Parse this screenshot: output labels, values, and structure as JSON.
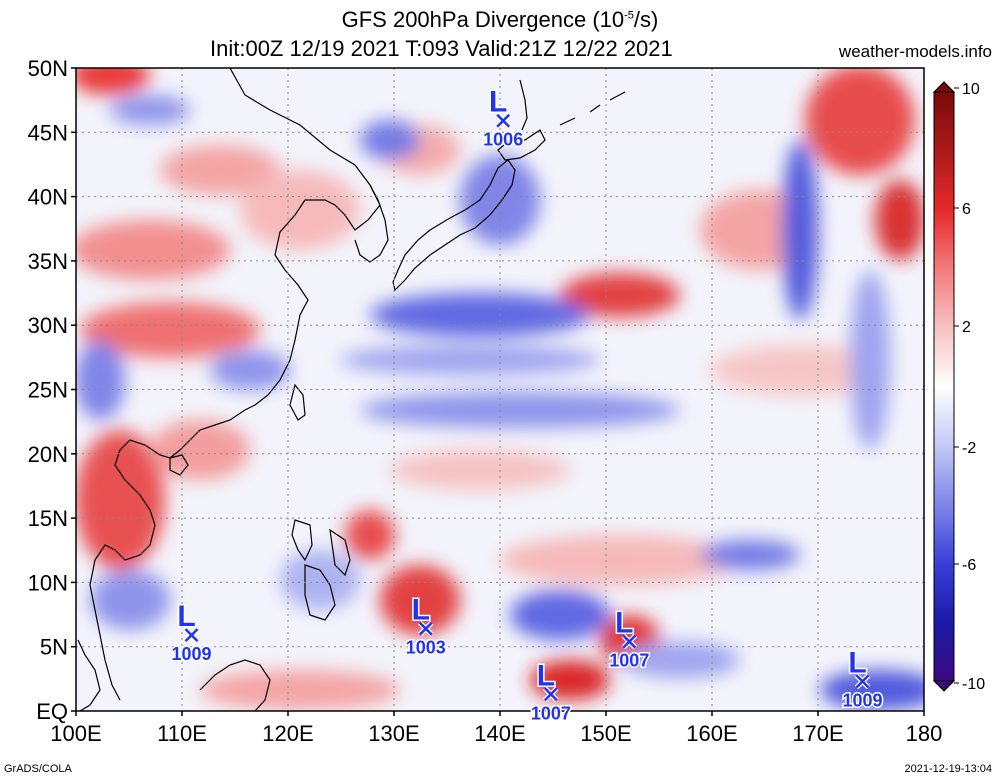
{
  "header": {
    "title_prefix": "GFS 200hPa Divergence (10",
    "title_exp": "-5",
    "title_suffix": "/s)",
    "subtitle": "Init:00Z 12/19 2021 T:093 Valid:21Z 12/22 2021",
    "site": "weather-models.info"
  },
  "footer": {
    "left": "GrADS/COLA",
    "right": "2021-12-19-13:04"
  },
  "map": {
    "lat_labels": [
      "50N",
      "45N",
      "40N",
      "35N",
      "30N",
      "25N",
      "20N",
      "15N",
      "10N",
      "5N",
      "EQ"
    ],
    "lon_labels": [
      "100E",
      "110E",
      "120E",
      "130E",
      "140E",
      "150E",
      "160E",
      "170E",
      "180"
    ],
    "lows": [
      {
        "symbol": "L",
        "pressure": "1006",
        "lon": 140.3,
        "lat": 45.9
      },
      {
        "symbol": "L",
        "pressure": "1009",
        "lon": 110.9,
        "lat": 5.9
      },
      {
        "symbol": "L",
        "pressure": "1003",
        "lon": 133.0,
        "lat": 6.4
      },
      {
        "symbol": "L",
        "pressure": "1007",
        "lon": 144.8,
        "lat": 1.3
      },
      {
        "symbol": "L",
        "pressure": "1007",
        "lon": 152.2,
        "lat": 5.4
      },
      {
        "symbol": "L",
        "pressure": "1009",
        "lon": 174.2,
        "lat": 2.3
      }
    ]
  },
  "colorbar": {
    "labels": [
      "10",
      "6",
      "2",
      "-2",
      "-6",
      "-10"
    ],
    "colors": [
      "#7a0a0a",
      "#b81d1d",
      "#e62a2a",
      "#f27b7b",
      "#f7c2c2",
      "#ffffff",
      "#c4c8f5",
      "#7f86ea",
      "#3a3fd8",
      "#1a1aa8",
      "#3a0a80"
    ]
  }
}
